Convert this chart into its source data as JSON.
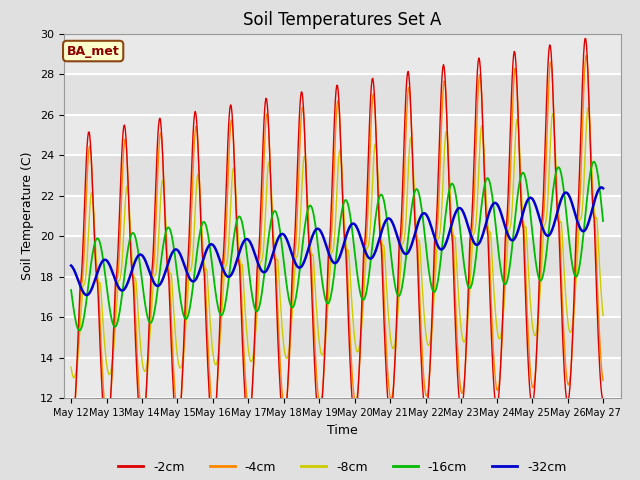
{
  "title": "Soil Temperatures Set A",
  "xlabel": "Time",
  "ylabel": "Soil Temperature (C)",
  "ylim": [
    12,
    30
  ],
  "annotation": "BA_met",
  "series_colors": {
    "-2cm": "#dd0000",
    "-4cm": "#ff8800",
    "-8cm": "#cccc00",
    "-16cm": "#00bb00",
    "-32cm": "#0000cc"
  },
  "tick_labels": [
    "May 12",
    "May 13",
    "May 14",
    "May 15",
    "May 16",
    "May 17",
    "May 18",
    "May 19",
    "May 20",
    "May 21",
    "May 22",
    "May 23",
    "May 24",
    "May 25",
    "May 26",
    "May 27"
  ],
  "background_color": "#e0e0e0",
  "plot_bg": "#ebebeb",
  "grid_color": "#ffffff",
  "title_fontsize": 12,
  "legend_fontsize": 9
}
